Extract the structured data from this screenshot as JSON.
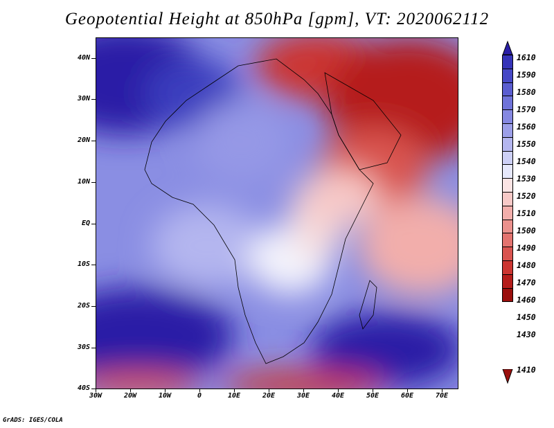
{
  "title": "Geopotential Height at 850hPa [gpm], VT: 2020062112",
  "y_axis": {
    "labels": [
      "40N",
      "30N",
      "20N",
      "10N",
      "EQ",
      "10S",
      "20S",
      "30S",
      "40S"
    ],
    "lat_values": [
      40,
      30,
      20,
      10,
      0,
      -10,
      -20,
      -30,
      -40
    ]
  },
  "x_axis": {
    "labels": [
      "30W",
      "20W",
      "10W",
      "0",
      "10E",
      "20E",
      "30E",
      "40E",
      "50E",
      "60E",
      "70E"
    ],
    "lon_values": [
      -30,
      -20,
      -10,
      0,
      10,
      20,
      30,
      40,
      50,
      60,
      70
    ]
  },
  "colorbar": {
    "labels": [
      "1610",
      "1590",
      "1580",
      "1570",
      "1560",
      "1550",
      "1540",
      "1530",
      "1520",
      "1510",
      "1500",
      "1490",
      "1480",
      "1470",
      "1460",
      "1450",
      "1430",
      "1410"
    ],
    "colors": [
      "#2a1ea6",
      "#3533b8",
      "#4648c6",
      "#5a5dd0",
      "#6f73d9",
      "#8588e1",
      "#9c9fe8",
      "#b4b6ef",
      "#cdd0f6",
      "#e6e8fb",
      "#fbe4e4",
      "#f7c9c7",
      "#f2aeab",
      "#eb918d",
      "#e3736f",
      "#d95450",
      "#cc3632",
      "#b51d1b",
      "#9a0f0d"
    ]
  },
  "credit": "GrADS: IGES/COLA"
}
